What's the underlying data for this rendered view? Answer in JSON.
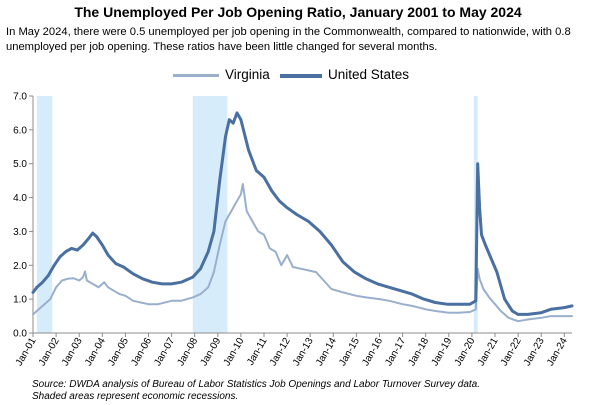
{
  "header": {
    "title": "The Unemployed Per Job Opening Ratio, January 2001 to May 2024",
    "subtitle": "In May 2024, there were 0.5 unemployed per job opening in the Commonwealth, compared to nationwide, with 0.8 unemployed per job opening. These ratios have been little changed for several months."
  },
  "footer": {
    "source": "Source: DWDA analysis of Bureau of Labor Statistics Job Openings and Labor Turnover Survey data.",
    "note": "Shaded areas represent economic recessions."
  },
  "colors": {
    "virginia": "#9aafcb",
    "united_states": "#4a6fa1",
    "recession": "#d6ecfb",
    "axis": "#8c8c8c"
  },
  "chart_data": {
    "type": "line",
    "title": "The Unemployed Per Job Opening Ratio, January 2001 to May 2024",
    "ylim": [
      0,
      7
    ],
    "yticks": [
      "0.0",
      "1.0",
      "2.0",
      "3.0",
      "4.0",
      "5.0",
      "6.0",
      "7.0"
    ],
    "xticks": [
      "Jan-01",
      "Jan-02",
      "Jan-03",
      "Jan-04",
      "Jan-05",
      "Jan-06",
      "Jan-07",
      "Jan-08",
      "Jan-09",
      "Jan-10",
      "Jan-11",
      "Jan-12",
      "Jan-13",
      "Jan-14",
      "Jan-15",
      "Jan-16",
      "Jan-17",
      "Jan-18",
      "Jan-19",
      "Jan-20",
      "Jan-21",
      "Jan-22",
      "Jan-23",
      "Jan-24"
    ],
    "x_range": [
      "2001-01",
      "2024-05"
    ],
    "grid": false,
    "legend_position": "top-center",
    "recessions": [
      {
        "start": "2001-03",
        "end": "2001-11"
      },
      {
        "start": "2007-12",
        "end": "2009-06"
      },
      {
        "start": "2020-02",
        "end": "2020-04"
      }
    ],
    "series": [
      {
        "name": "Virginia",
        "points": [
          [
            "2001-01",
            0.55
          ],
          [
            "2001-04",
            0.7
          ],
          [
            "2001-07",
            0.85
          ],
          [
            "2001-10",
            1.0
          ],
          [
            "2002-01",
            1.35
          ],
          [
            "2002-04",
            1.55
          ],
          [
            "2002-07",
            1.6
          ],
          [
            "2002-10",
            1.62
          ],
          [
            "2003-01",
            1.55
          ],
          [
            "2003-03",
            1.65
          ],
          [
            "2003-04",
            1.82
          ],
          [
            "2003-05",
            1.55
          ],
          [
            "2003-08",
            1.45
          ],
          [
            "2003-11",
            1.35
          ],
          [
            "2004-02",
            1.5
          ],
          [
            "2004-04",
            1.35
          ],
          [
            "2004-07",
            1.25
          ],
          [
            "2004-10",
            1.15
          ],
          [
            "2005-01",
            1.1
          ],
          [
            "2005-05",
            0.95
          ],
          [
            "2005-09",
            0.9
          ],
          [
            "2006-01",
            0.85
          ],
          [
            "2006-06",
            0.85
          ],
          [
            "2007-01",
            0.95
          ],
          [
            "2007-06",
            0.95
          ],
          [
            "2007-12",
            1.05
          ],
          [
            "2008-04",
            1.15
          ],
          [
            "2008-08",
            1.35
          ],
          [
            "2008-11",
            1.8
          ],
          [
            "2009-02",
            2.6
          ],
          [
            "2009-05",
            3.3
          ],
          [
            "2009-08",
            3.6
          ],
          [
            "2009-11",
            3.9
          ],
          [
            "2010-01",
            4.1
          ],
          [
            "2010-02",
            4.4
          ],
          [
            "2010-04",
            3.6
          ],
          [
            "2010-07",
            3.3
          ],
          [
            "2010-10",
            3.0
          ],
          [
            "2011-01",
            2.9
          ],
          [
            "2011-04",
            2.5
          ],
          [
            "2011-07",
            2.4
          ],
          [
            "2011-10",
            2.0
          ],
          [
            "2012-01",
            2.3
          ],
          [
            "2012-04",
            1.95
          ],
          [
            "2012-08",
            1.9
          ],
          [
            "2012-12",
            1.85
          ],
          [
            "2013-04",
            1.8
          ],
          [
            "2013-08",
            1.55
          ],
          [
            "2013-12",
            1.3
          ],
          [
            "2014-06",
            1.2
          ],
          [
            "2015-01",
            1.1
          ],
          [
            "2015-06",
            1.05
          ],
          [
            "2016-01",
            1.0
          ],
          [
            "2016-06",
            0.95
          ],
          [
            "2017-01",
            0.85
          ],
          [
            "2017-06",
            0.8
          ],
          [
            "2018-01",
            0.7
          ],
          [
            "2018-06",
            0.65
          ],
          [
            "2019-01",
            0.6
          ],
          [
            "2019-06",
            0.6
          ],
          [
            "2019-12",
            0.62
          ],
          [
            "2020-03",
            0.7
          ],
          [
            "2020-04",
            1.9
          ],
          [
            "2020-05",
            1.6
          ],
          [
            "2020-07",
            1.3
          ],
          [
            "2020-10",
            1.05
          ],
          [
            "2021-01",
            0.85
          ],
          [
            "2021-04",
            0.65
          ],
          [
            "2021-08",
            0.45
          ],
          [
            "2022-01",
            0.35
          ],
          [
            "2022-06",
            0.4
          ],
          [
            "2023-01",
            0.45
          ],
          [
            "2023-06",
            0.5
          ],
          [
            "2024-01",
            0.5
          ],
          [
            "2024-05",
            0.5
          ]
        ]
      },
      {
        "name": "United States",
        "points": [
          [
            "2001-01",
            1.2
          ],
          [
            "2001-03",
            1.35
          ],
          [
            "2001-06",
            1.5
          ],
          [
            "2001-09",
            1.7
          ],
          [
            "2001-12",
            2.0
          ],
          [
            "2002-03",
            2.25
          ],
          [
            "2002-06",
            2.4
          ],
          [
            "2002-09",
            2.5
          ],
          [
            "2002-12",
            2.45
          ],
          [
            "2003-03",
            2.6
          ],
          [
            "2003-06",
            2.8
          ],
          [
            "2003-08",
            2.95
          ],
          [
            "2003-10",
            2.85
          ],
          [
            "2004-01",
            2.6
          ],
          [
            "2004-04",
            2.3
          ],
          [
            "2004-08",
            2.05
          ],
          [
            "2004-12",
            1.95
          ],
          [
            "2005-05",
            1.75
          ],
          [
            "2005-10",
            1.6
          ],
          [
            "2006-03",
            1.5
          ],
          [
            "2006-08",
            1.45
          ],
          [
            "2007-01",
            1.45
          ],
          [
            "2007-06",
            1.5
          ],
          [
            "2007-12",
            1.65
          ],
          [
            "2008-04",
            1.9
          ],
          [
            "2008-08",
            2.4
          ],
          [
            "2008-11",
            3.0
          ],
          [
            "2009-02",
            4.5
          ],
          [
            "2009-05",
            5.8
          ],
          [
            "2009-07",
            6.3
          ],
          [
            "2009-09",
            6.2
          ],
          [
            "2009-11",
            6.5
          ],
          [
            "2010-01",
            6.3
          ],
          [
            "2010-05",
            5.4
          ],
          [
            "2010-09",
            4.8
          ],
          [
            "2011-01",
            4.6
          ],
          [
            "2011-05",
            4.2
          ],
          [
            "2011-09",
            3.9
          ],
          [
            "2012-01",
            3.7
          ],
          [
            "2012-06",
            3.5
          ],
          [
            "2012-12",
            3.3
          ],
          [
            "2013-06",
            3.0
          ],
          [
            "2013-12",
            2.6
          ],
          [
            "2014-06",
            2.1
          ],
          [
            "2014-12",
            1.8
          ],
          [
            "2015-06",
            1.6
          ],
          [
            "2015-12",
            1.45
          ],
          [
            "2016-06",
            1.35
          ],
          [
            "2016-12",
            1.25
          ],
          [
            "2017-06",
            1.15
          ],
          [
            "2017-12",
            1.0
          ],
          [
            "2018-06",
            0.9
          ],
          [
            "2018-12",
            0.85
          ],
          [
            "2019-06",
            0.85
          ],
          [
            "2019-12",
            0.85
          ],
          [
            "2020-03",
            0.95
          ],
          [
            "2020-04",
            5.0
          ],
          [
            "2020-05",
            3.7
          ],
          [
            "2020-06",
            2.9
          ],
          [
            "2020-08",
            2.6
          ],
          [
            "2020-11",
            2.2
          ],
          [
            "2021-02",
            1.8
          ],
          [
            "2021-06",
            1.0
          ],
          [
            "2021-10",
            0.65
          ],
          [
            "2022-01",
            0.55
          ],
          [
            "2022-06",
            0.55
          ],
          [
            "2023-01",
            0.6
          ],
          [
            "2023-06",
            0.7
          ],
          [
            "2024-01",
            0.75
          ],
          [
            "2024-05",
            0.8
          ]
        ]
      }
    ]
  }
}
